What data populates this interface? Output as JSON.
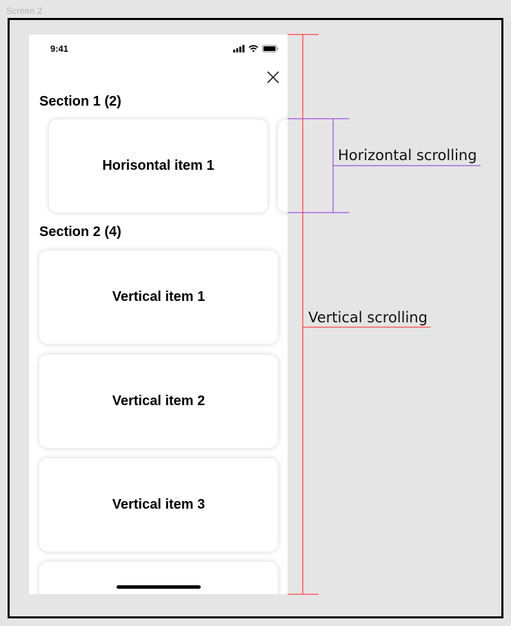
{
  "canvas": {
    "frame_label": "Screen 2"
  },
  "status_bar": {
    "time": "9:41",
    "icons": [
      "signal-icon",
      "wifi-icon",
      "battery-icon"
    ]
  },
  "header": {
    "close_icon": "close-icon"
  },
  "sections": [
    {
      "title": "Section 1 (2)",
      "items": [
        "Horisontal item 1",
        ""
      ]
    },
    {
      "title": "Section 2 (4)",
      "items": [
        "Vertical item 1",
        "Vertical item 2",
        "Vertical item 3",
        ""
      ]
    }
  ],
  "annotations": {
    "horizontal": {
      "label": "Horizontal scrolling",
      "color": "#8a2be2"
    },
    "vertical": {
      "label": "Vertical scrolling",
      "color": "#ff1a1a"
    }
  }
}
